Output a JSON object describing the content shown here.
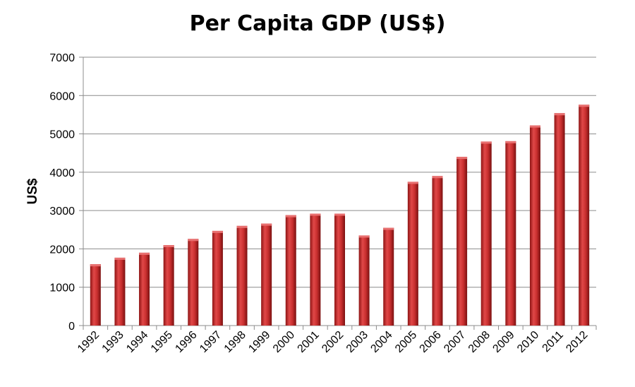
{
  "chart_data": {
    "type": "bar",
    "title": "Per Capita GDP (US$)",
    "xlabel": "",
    "ylabel": "US$",
    "ylim": [
      0,
      7000
    ],
    "yticks": [
      0,
      1000,
      2000,
      3000,
      4000,
      5000,
      6000,
      7000
    ],
    "grid": true,
    "legend": "none",
    "categories": [
      "1992",
      "1993",
      "1994",
      "1995",
      "1996",
      "1997",
      "1998",
      "1999",
      "2000",
      "2001",
      "2002",
      "2003",
      "2004",
      "2005",
      "2006",
      "2007",
      "2008",
      "2009",
      "2010",
      "2011",
      "2012"
    ],
    "values": [
      1600,
      1770,
      1900,
      2100,
      2260,
      2470,
      2600,
      2660,
      2880,
      2920,
      2920,
      2350,
      2550,
      3750,
      3900,
      4400,
      4800,
      4810,
      5220,
      5540,
      5760
    ],
    "bar_color": "#c62d2d"
  }
}
